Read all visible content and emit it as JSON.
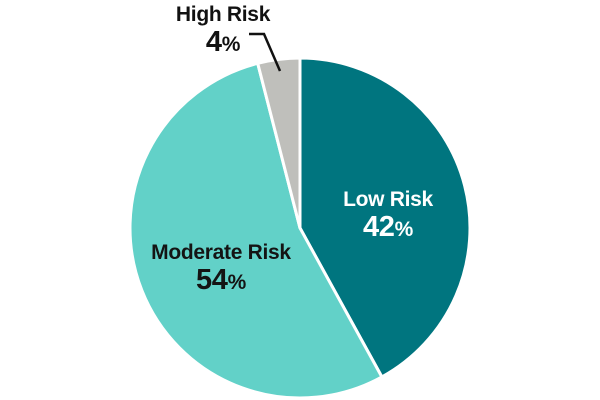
{
  "chart_data": {
    "type": "pie",
    "title": "",
    "categories": [
      "Low Risk",
      "Moderate Risk",
      "High Risk"
    ],
    "values": [
      42,
      54,
      4
    ],
    "unit": "%",
    "start_angle_deg": 0,
    "direction": "clockwise",
    "legend": "none",
    "labels_on_slices": true,
    "percent_symbol": "%",
    "slices": [
      {
        "label": "Low Risk",
        "value": 42,
        "percent_text": "42",
        "color": "#00757f",
        "text_color": "#ffffff",
        "label_placement": "inside"
      },
      {
        "label": "Moderate Risk",
        "value": 54,
        "percent_text": "54",
        "color": "#62d1c8",
        "text_color": "#141414",
        "label_placement": "inside"
      },
      {
        "label": "High Risk",
        "value": 4,
        "percent_text": "4",
        "color": "#bfbfbb",
        "text_color": "#111111",
        "label_placement": "outside-callout"
      }
    ],
    "callout_color": "#111111",
    "separator_color": "#ffffff"
  }
}
